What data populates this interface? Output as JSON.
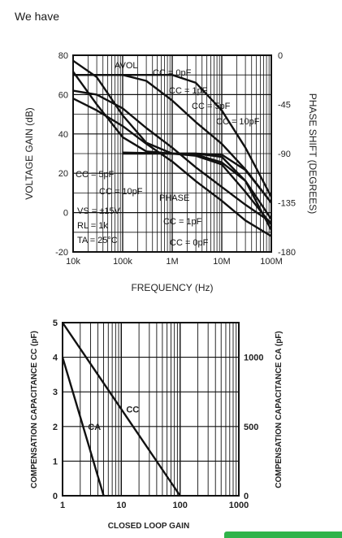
{
  "intro_text": "We have",
  "chart_data": [
    {
      "type": "line",
      "xscale": "log",
      "x_ticks": [
        "10k",
        "100k",
        "1M",
        "10M",
        "100M"
      ],
      "y_ticks_left": [
        "80",
        "60",
        "40",
        "20",
        "0",
        "-20"
      ],
      "y_ticks_right": [
        "0",
        "-45",
        "-90",
        "-135",
        "-180"
      ],
      "xlabel": "FREQUENCY (Hz)",
      "ylabel": "VOLTAGE GAIN (dB)",
      "ylabel_right": "PHASE SHIFT (DEGREES)",
      "xlim": [
        10000,
        100000000
      ],
      "ylim": [
        -20,
        80
      ],
      "ylim_right": [
        -180,
        0
      ],
      "grid": true,
      "annotations": {
        "avol": "AVOL",
        "avol_cc0": "CC = 0pF",
        "avol_cc1": "CC = 1pF",
        "avol_cc5": "CC = 5pF",
        "avol_cc10": "CC = 10pF",
        "phase": "PHASE",
        "ph_cc5": "CC = 5pF",
        "ph_cc10": "CC = 10pF",
        "ph_cc1": "CC = 1pF",
        "ph_cc0": "CC = 0pF",
        "cond_vs": "VS = ±15V",
        "cond_rl": "RL = 1k",
        "cond_ta": "TA = 25°C"
      },
      "gain_series": [
        {
          "name": "CC = 0pF",
          "x": [
            10000,
            100000,
            1000000,
            3000000,
            10000000,
            30000000,
            100000000
          ],
          "y": [
            70,
            70,
            70,
            66,
            52,
            33,
            8
          ]
        },
        {
          "name": "CC = 1pF",
          "x": [
            10000,
            100000,
            300000,
            1000000,
            3000000,
            10000000,
            30000000,
            100000000
          ],
          "y": [
            70,
            70,
            67,
            57,
            46,
            35,
            22,
            5
          ]
        },
        {
          "name": "CC = 5pF",
          "x": [
            10000,
            30000,
            100000,
            300000,
            1000000,
            3000000,
            10000000,
            30000000,
            100000000
          ],
          "y": [
            62,
            60,
            53,
            43,
            33,
            23,
            13,
            4,
            -5
          ]
        },
        {
          "name": "CC = 10pF",
          "x": [
            10000,
            30000,
            100000,
            300000,
            1000000,
            3000000,
            10000000,
            30000000,
            100000000
          ],
          "y": [
            58,
            52,
            44,
            35,
            26,
            16,
            6,
            -4,
            -12
          ]
        }
      ],
      "phase_series": [
        {
          "name": "CC = 5pF",
          "x": [
            10000,
            30000,
            100000,
            300000,
            1000000,
            3000000,
            10000000,
            30000000,
            100000000
          ],
          "y": [
            -5,
            -20,
            -55,
            -80,
            -90,
            -90,
            -91,
            -105,
            -135
          ]
        },
        {
          "name": "CC = 10pF",
          "x": [
            10000,
            30000,
            100000,
            300000,
            1000000,
            3000000,
            10000000,
            30000000,
            100000000
          ],
          "y": [
            -15,
            -45,
            -75,
            -88,
            -90,
            -90,
            -93,
            -115,
            -150
          ]
        },
        {
          "name": "CC = 1pF",
          "x": [
            100000,
            1000000,
            3000000,
            10000000,
            30000000,
            100000000
          ],
          "y": [
            -89,
            -90,
            -92,
            -100,
            -125,
            -155
          ]
        },
        {
          "name": "CC = 0pF",
          "x": [
            100000,
            1000000,
            3000000,
            10000000,
            30000000,
            100000000
          ],
          "y": [
            -90,
            -90,
            -91,
            -98,
            -115,
            -160
          ]
        }
      ]
    },
    {
      "type": "line",
      "xscale": "log",
      "x_ticks": [
        "1",
        "10",
        "100",
        "1000"
      ],
      "y_ticks_left": [
        "5",
        "4",
        "3",
        "2",
        "1",
        "0"
      ],
      "y_ticks_right": [
        "1000",
        "500",
        "0"
      ],
      "xlabel": "CLOSED LOOP GAIN",
      "ylabel": "COMPENSATION CAPACITANCE CC (pF)",
      "ylabel_right": "COMPENSATION CAPACITANCE CA (pF)",
      "xlim": [
        1,
        1000
      ],
      "ylim": [
        0,
        5
      ],
      "ylim_right": [
        0,
        1250
      ],
      "grid": true,
      "series": [
        {
          "name": "CC",
          "x": [
            1,
            100
          ],
          "y": [
            5,
            0
          ]
        },
        {
          "name": "CA",
          "x": [
            1,
            5
          ],
          "y": [
            4,
            0
          ]
        }
      ]
    }
  ]
}
